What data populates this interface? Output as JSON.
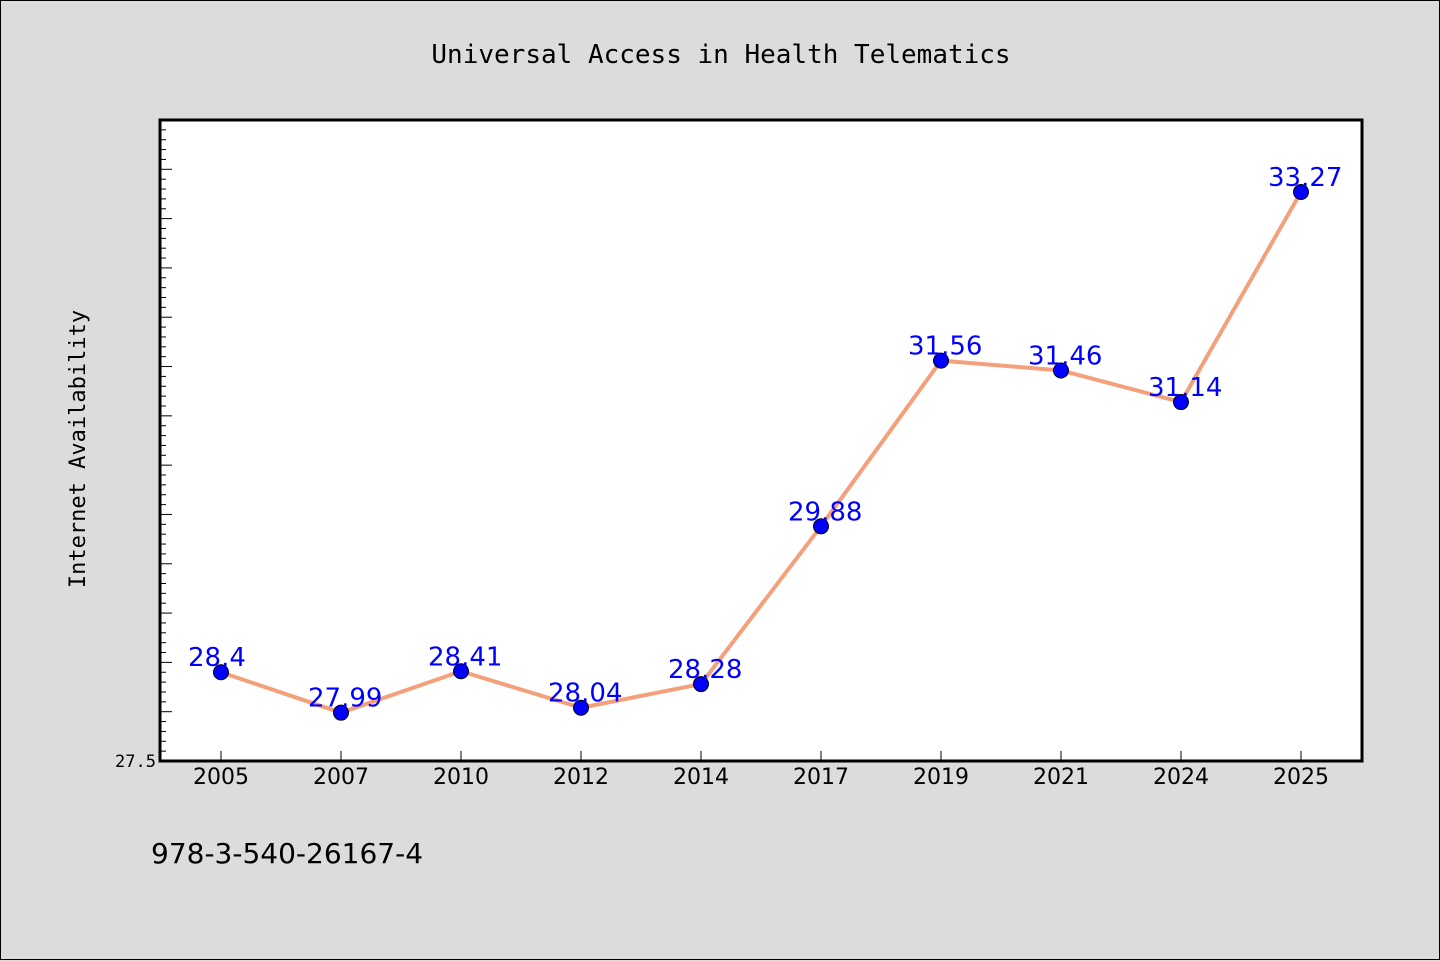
{
  "chart_data": {
    "type": "line",
    "title": "Universal Access in Health Telematics",
    "xlabel": "",
    "ylabel": "Internet Availability",
    "categories": [
      "2005",
      "2007",
      "2010",
      "2012",
      "2014",
      "2017",
      "2019",
      "2021",
      "2024",
      "2025"
    ],
    "values": [
      28.4,
      27.99,
      28.41,
      28.04,
      28.28,
      29.88,
      31.56,
      31.46,
      31.14,
      33.27
    ],
    "data_labels": [
      "28.4",
      "27.99",
      "28.41",
      "28.04",
      "28.28",
      "29.88",
      "31.56",
      "31.46",
      "31.14",
      "33.27"
    ],
    "ylim": [
      27.5,
      34.0
    ],
    "ytick_labels": [
      "27.5"
    ],
    "grid": false,
    "legend": "none",
    "line_color": "#f4a07a",
    "marker_color": "#0000ff",
    "label_color": "#0000ff",
    "footnote": "978-3-540-26167-4"
  }
}
